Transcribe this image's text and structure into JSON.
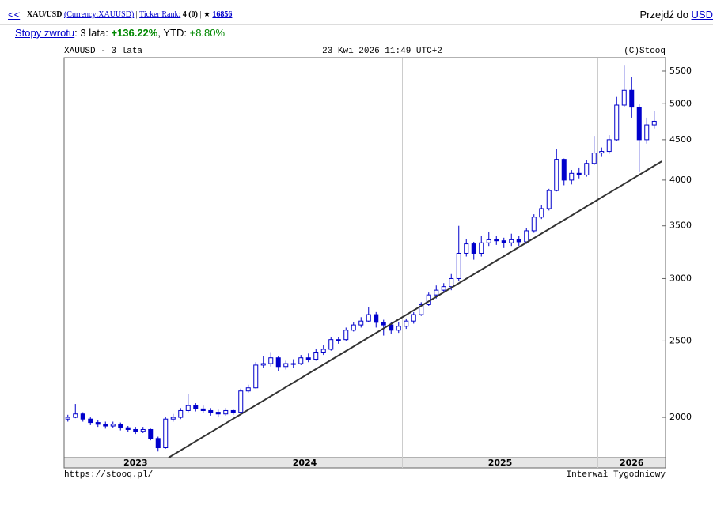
{
  "header": {
    "back": "<<",
    "ticker": "XAU/USD",
    "currency": "(Currency:XAUUSD)",
    "rank_label": "Ticker Rank:",
    "rank": "4 (0)",
    "star": "★",
    "stars": "16856",
    "goto_label": "Przejdź do",
    "goto_link": "USD"
  },
  "returns": {
    "label": "Stopy zwrotu",
    "period": "3 lata:",
    "period_value": "+136.22%",
    "ytd_label": "YTD:",
    "ytd_value": "+8.80%"
  },
  "chart_data": {
    "type": "candlestick",
    "title": "XAUUSD - 3 lata",
    "subtitle": "23 Kwi 2026 11:49 UTC+2",
    "source": "(C)Stooq",
    "url": "https://stooq.pl/",
    "interval": "Interwał Tygodniowy",
    "color": "#0000cc",
    "log_scale": true,
    "ylim": [
      1778,
      5720
    ],
    "yticks": [
      2000,
      2500,
      3000,
      3500,
      4000,
      4500,
      5000,
      5500
    ],
    "x_labels": [
      "2023",
      "2024",
      "2025",
      "2026"
    ],
    "year_starts": [
      19,
      45,
      71
    ],
    "slots": 80,
    "open": [
      1990,
      2000,
      2020,
      1990,
      1970,
      1960,
      1950,
      1960,
      1940,
      1930,
      1920,
      1930,
      1880,
      1830,
      1990,
      2000,
      2040,
      2070,
      2050,
      2040,
      2030,
      2020,
      2040,
      2030,
      2160,
      2180,
      2330,
      2340,
      2380,
      2320,
      2340,
      2340,
      2380,
      2370,
      2420,
      2440,
      2510,
      2510,
      2580,
      2620,
      2650,
      2700,
      2640,
      2620,
      2580,
      2610,
      2650,
      2700,
      2780,
      2860,
      2900,
      2930,
      3000,
      3230,
      3320,
      3230,
      3330,
      3360,
      3350,
      3330,
      3360,
      3340,
      3450,
      3590,
      3680,
      3880,
      4250,
      4000,
      4080,
      4060,
      4200,
      4330,
      4350,
      4500,
      4980,
      5200,
      4950,
      4500,
      4700
    ],
    "high": [
      2015,
      2080,
      2030,
      2000,
      1985,
      1975,
      1975,
      1970,
      1950,
      1945,
      1945,
      1935,
      1890,
      2000,
      2020,
      2055,
      2140,
      2085,
      2070,
      2055,
      2045,
      2055,
      2050,
      2175,
      2200,
      2350,
      2390,
      2420,
      2390,
      2360,
      2370,
      2400,
      2410,
      2440,
      2470,
      2530,
      2530,
      2600,
      2640,
      2680,
      2760,
      2720,
      2660,
      2640,
      2640,
      2670,
      2720,
      2800,
      2880,
      2940,
      2960,
      3040,
      3500,
      3370,
      3340,
      3400,
      3440,
      3400,
      3380,
      3420,
      3400,
      3480,
      3620,
      3720,
      3900,
      4380,
      4260,
      4120,
      4150,
      4240,
      4550,
      4400,
      4560,
      5100,
      5600,
      5400,
      5000,
      4800,
      4900
    ],
    "low": [
      1975,
      1995,
      1975,
      1955,
      1945,
      1935,
      1940,
      1925,
      1915,
      1905,
      1910,
      1870,
      1810,
      1825,
      1975,
      1990,
      2030,
      2035,
      2025,
      2010,
      2000,
      2010,
      2015,
      2025,
      2150,
      2175,
      2310,
      2320,
      2290,
      2300,
      2310,
      2330,
      2350,
      2360,
      2400,
      2430,
      2480,
      2500,
      2570,
      2600,
      2640,
      2600,
      2540,
      2550,
      2560,
      2590,
      2630,
      2690,
      2770,
      2830,
      2880,
      2900,
      2980,
      3200,
      3170,
      3200,
      3300,
      3310,
      3280,
      3300,
      3300,
      3320,
      3430,
      3570,
      3660,
      3870,
      3940,
      3950,
      4020,
      4040,
      4180,
      4280,
      4320,
      4480,
      4950,
      4800,
      4100,
      4450,
      4650
    ],
    "close": [
      2000,
      2020,
      1990,
      1970,
      1960,
      1950,
      1960,
      1940,
      1930,
      1920,
      1930,
      1880,
      1830,
      1990,
      2000,
      2040,
      2070,
      2050,
      2040,
      2030,
      2020,
      2040,
      2030,
      2160,
      2180,
      2330,
      2340,
      2380,
      2320,
      2340,
      2340,
      2380,
      2370,
      2420,
      2440,
      2510,
      2510,
      2580,
      2620,
      2650,
      2700,
      2640,
      2620,
      2580,
      2610,
      2650,
      2700,
      2780,
      2860,
      2900,
      2930,
      3000,
      3230,
      3320,
      3230,
      3330,
      3360,
      3350,
      3330,
      3360,
      3340,
      3450,
      3590,
      3680,
      3880,
      4250,
      4000,
      4080,
      4060,
      4200,
      4330,
      4350,
      4500,
      4980,
      5200,
      4950,
      4500,
      4700,
      4750
    ],
    "trendline": {
      "from": [
        13.4,
        1778
      ],
      "to": [
        79,
        4226
      ],
      "color": "#333333"
    }
  }
}
